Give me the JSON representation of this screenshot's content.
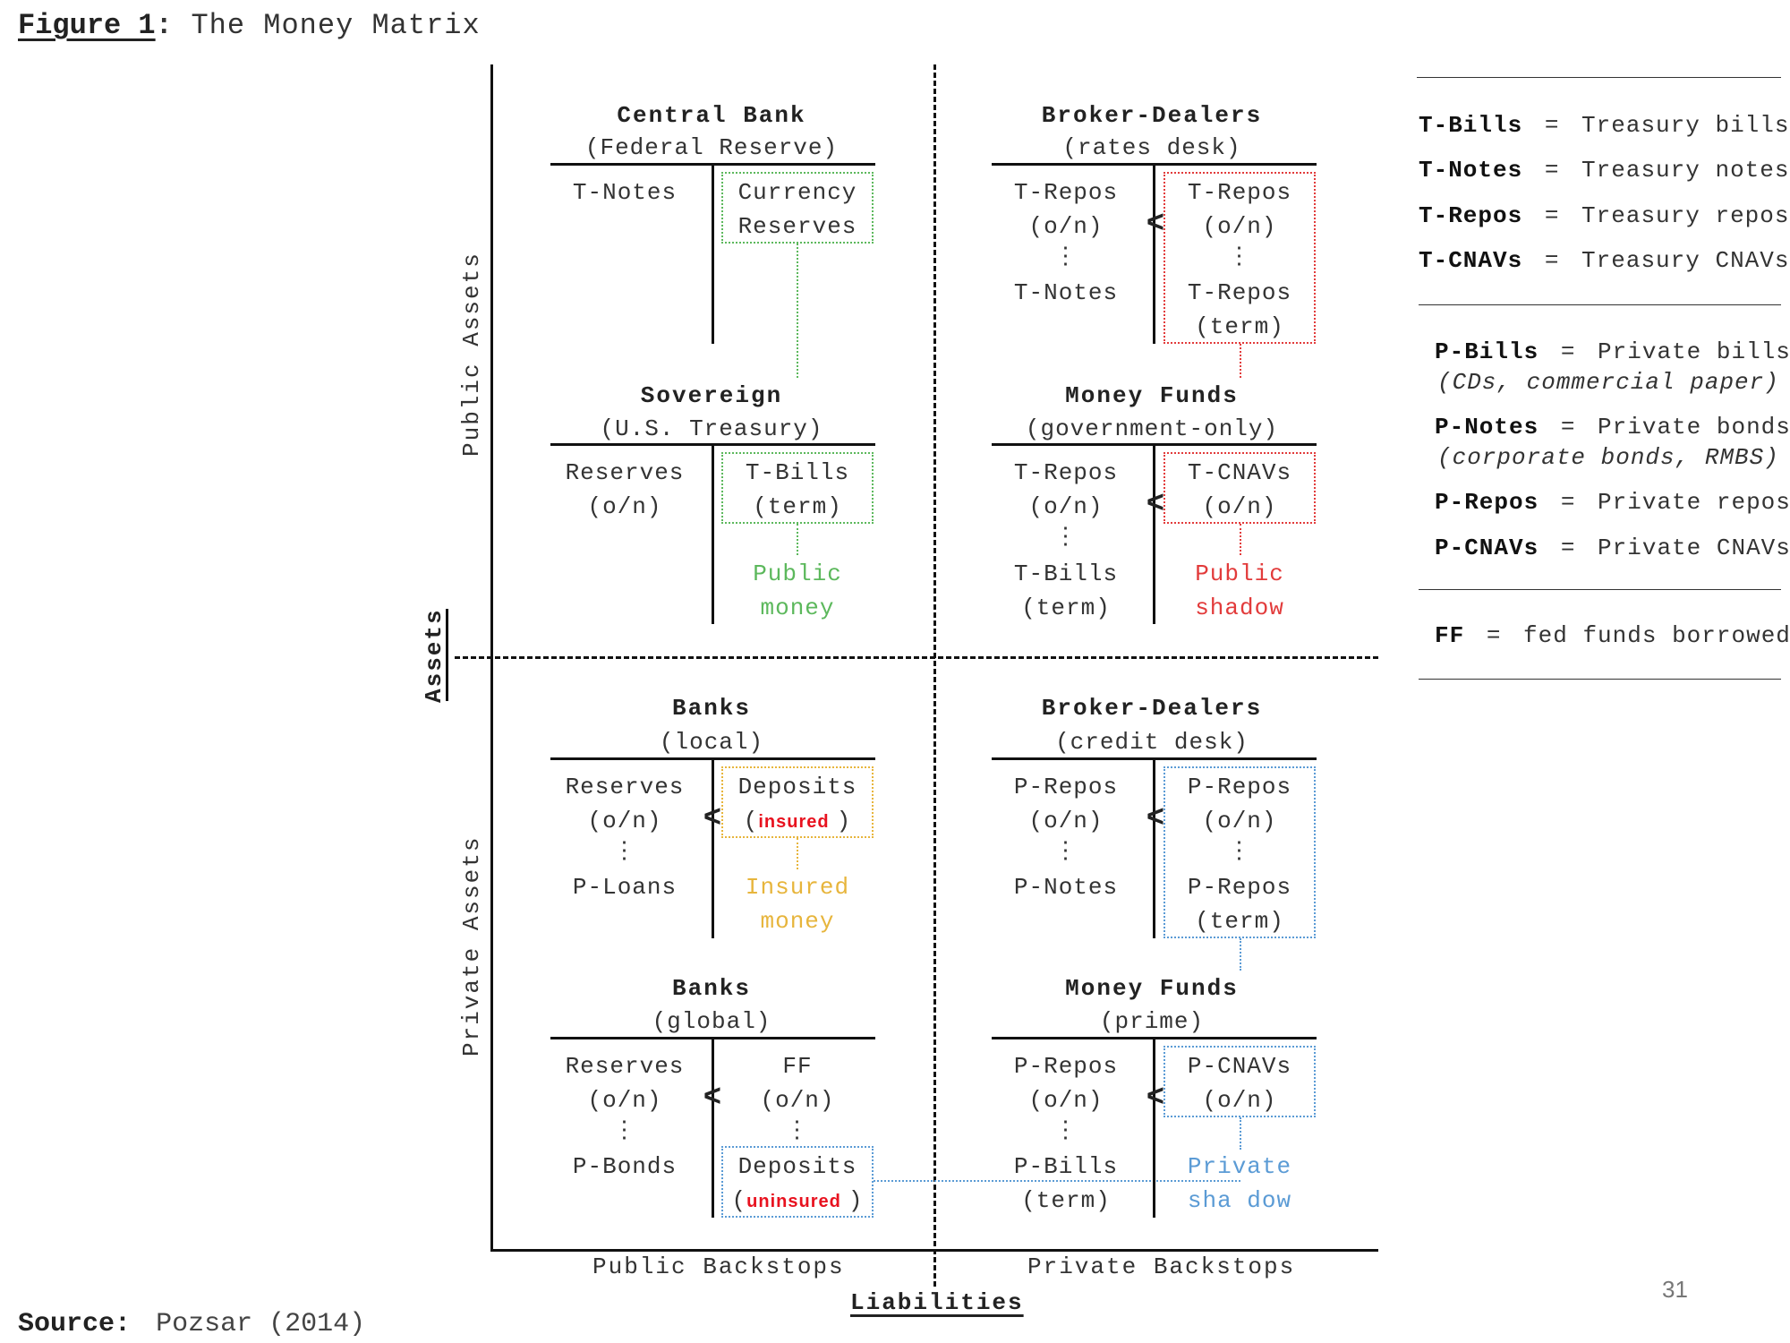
{
  "figure": {
    "label": "Figure 1",
    "colon": ":",
    "title": "The Money Matrix"
  },
  "axes": {
    "public_assets": "Public Assets",
    "private_assets": "Private Assets",
    "assets": "Assets",
    "liabilities": "Liabilities",
    "public_backstops": "Public Backstops",
    "private_backstops": "Private Backstops"
  },
  "sectors": {
    "central_bank": {
      "name": "Central Bank",
      "sub": "(Federal Reserve)",
      "assets": [
        "T-Notes"
      ],
      "liabilities": [
        "Currency",
        "Reserves"
      ]
    },
    "broker_dealers_rates": {
      "name": "Broker-Dealers",
      "sub": "(rates desk)",
      "assets": [
        "T-Repos",
        "(o/n)",
        "⋮",
        "T-Notes"
      ],
      "lt": "<",
      "liabilities": [
        "T-Repos",
        "(o/n)",
        "⋮",
        "T-Repos",
        "(term)"
      ]
    },
    "sovereign": {
      "name": "Sovereign",
      "sub": "(U.S. Treasury)",
      "assets": [
        "Reserves",
        "(o/n)"
      ],
      "liabilities": [
        "T-Bills",
        "(term)"
      ],
      "money": [
        "Public",
        "money"
      ]
    },
    "money_funds_gov": {
      "name": "Money Funds",
      "sub": "(government-only)",
      "assets": [
        "T-Repos",
        "(o/n)",
        "⋮",
        "T-Bills",
        "(term)"
      ],
      "lt": "<",
      "liabilities": [
        "T-CNAVs",
        "(o/n)"
      ],
      "money": [
        "Public",
        "shadow"
      ]
    },
    "banks_local": {
      "name": "Banks",
      "sub": "(local)",
      "assets": [
        "Reserves",
        "(o/n)",
        "⋮",
        "P-Loans"
      ],
      "lt": "<",
      "liabilities_top": "Deposits",
      "liabilities_open": "(",
      "liabilities_flag": "insured",
      "liabilities_close": ")",
      "money": [
        "Insured",
        "money"
      ]
    },
    "broker_dealers_credit": {
      "name": "Broker-Dealers",
      "sub": "(credit desk)",
      "assets": [
        "P-Repos",
        "(o/n)",
        "⋮",
        "P-Notes"
      ],
      "lt": "<",
      "liabilities": [
        "P-Repos",
        "(o/n)",
        "⋮",
        "P-Repos",
        "(term)"
      ]
    },
    "banks_global": {
      "name": "Banks",
      "sub": "(global)",
      "assets": [
        "Reserves",
        "(o/n)",
        "⋮",
        "P-Bonds"
      ],
      "lt": "<",
      "liabilities": [
        "FF",
        "(o/n)",
        "⋮"
      ],
      "deposits_top": "Deposits",
      "deposits_open": "(",
      "deposits_flag": "uninsured",
      "deposits_close": ")"
    },
    "money_funds_prime": {
      "name": "Money Funds",
      "sub": "(prime)",
      "assets": [
        "P-Repos",
        "(o/n)",
        "⋮",
        "P-Bills",
        "(term)"
      ],
      "lt": "<",
      "liabilities": [
        "P-CNAVs",
        "(o/n)"
      ],
      "money": [
        "Private",
        "sha dow"
      ]
    }
  },
  "glossary": {
    "public": [
      {
        "term": "T-Bills",
        "eq": "=",
        "def": "Treasury bills"
      },
      {
        "term": "T-Notes",
        "eq": "=",
        "def": "Treasury notes"
      },
      {
        "term": "T-Repos",
        "eq": "=",
        "def": "Treasury repos"
      },
      {
        "term": "T-CNAVs",
        "eq": "=",
        "def": "Treasury CNAVs"
      }
    ],
    "private": [
      {
        "term": "P-Bills",
        "eq": "=",
        "def": "Private bills",
        "note": "(CDs, commercial paper)"
      },
      {
        "term": "P-Notes",
        "eq": "=",
        "def": "Private bonds",
        "note": "(corporate bonds, RMBS)"
      },
      {
        "term": "P-Repos",
        "eq": "=",
        "def": "Private repos"
      },
      {
        "term": "P-CNAVs",
        "eq": "=",
        "def": "Private CNAVs"
      }
    ],
    "ff": {
      "term": "FF",
      "eq": "=",
      "def": "fed funds borrowed"
    }
  },
  "source": {
    "label": "Source",
    "colon": ":",
    "text": "Pozsar (2014)"
  },
  "page_number": "31",
  "colors": {
    "public_money": "#5cb85c",
    "public_shadow": "#e23b3b",
    "insured_money": "#e7b53c",
    "private_shadow": "#5b9bd5",
    "flag_red": "#e8121f"
  }
}
